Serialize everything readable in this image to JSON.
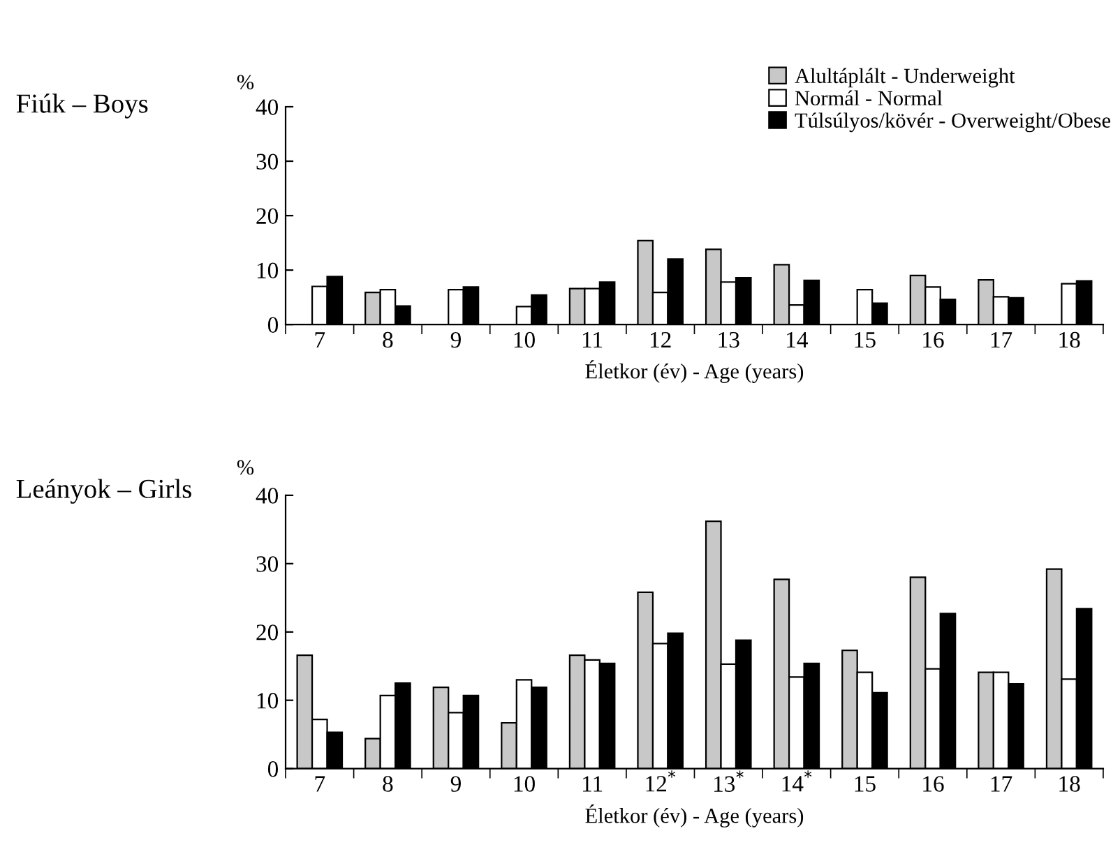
{
  "chart_data": [
    {
      "type": "bar",
      "title": "Fiúk – Boys",
      "ylabel": "%",
      "xlabel": "Életkor (év) - Age (years)",
      "categories": [
        "7",
        "8",
        "9",
        "10",
        "11",
        "12",
        "13",
        "14",
        "15",
        "16",
        "17",
        "18"
      ],
      "ylim": [
        0,
        40
      ],
      "yticks": [
        0,
        10,
        20,
        30,
        40
      ],
      "grid": false,
      "legend": "top right",
      "series": [
        {
          "name": "Alultáplált - Underweight",
          "color": "#c8c8c8",
          "values": [
            null,
            5.9,
            null,
            null,
            6.6,
            15.4,
            13.8,
            11,
            null,
            9,
            8.2,
            null
          ]
        },
        {
          "name": "Normál - Normal",
          "color": "#ffffff",
          "values": [
            7,
            6.4,
            6.4,
            3.3,
            6.6,
            5.9,
            7.8,
            3.6,
            6.4,
            6.9,
            5.1,
            7.5
          ]
        },
        {
          "name": "Túlsúlyos/kövér - Overweight/Obese",
          "color": "#000000",
          "values": [
            8.8,
            3.4,
            6.9,
            5.4,
            7.8,
            12,
            8.6,
            8.1,
            3.9,
            4.6,
            4.9,
            8
          ]
        }
      ]
    },
    {
      "type": "bar",
      "title": "Leányok – Girls",
      "ylabel": "%",
      "xlabel": "Életkor (év) - Age (years)",
      "categories": [
        "7",
        "8",
        "9",
        "10",
        "11",
        "12$^{*}$",
        "13$^{*}$",
        "14$^{*}$",
        "15",
        "16",
        "17",
        "18"
      ],
      "ylim": [
        0,
        40
      ],
      "yticks": [
        0,
        10,
        20,
        30,
        40
      ],
      "grid": false,
      "series": [
        {
          "color": "#c8c8c8",
          "values": [
            16.6,
            4.4,
            11.9,
            6.7,
            16.6,
            25.8,
            36.2,
            27.7,
            17.3,
            28,
            14.1,
            29.2
          ]
        },
        {
          "color": "#ffffff",
          "values": [
            7.2,
            10.7,
            8.2,
            13,
            15.9,
            18.3,
            15.3,
            13.4,
            14.1,
            14.6,
            14.1,
            13.1
          ]
        },
        {
          "color": "#000000",
          "values": [
            5.3,
            12.5,
            10.7,
            11.9,
            15.4,
            19.8,
            18.8,
            15.4,
            11.1,
            22.7,
            12.4,
            23.4
          ]
        }
      ]
    }
  ]
}
